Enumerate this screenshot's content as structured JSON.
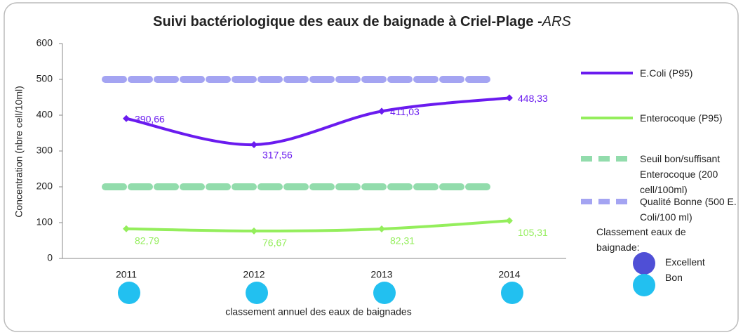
{
  "chart_data": {
    "type": "line",
    "title": "Suivi  bactériologique des eaux de baignade à Criel-Plage -",
    "title_italic": "ARS",
    "ylabel": "Concentration (nbre cell/10ml)",
    "xlabel": "classement  annuel des eaux de baignades",
    "categories": [
      "2011",
      "2012",
      "2013",
      "2014"
    ],
    "ylim": [
      0,
      600
    ],
    "yticks": [
      0,
      100,
      200,
      300,
      400,
      500,
      600
    ],
    "series": [
      {
        "name": "E.Coli (P95)",
        "color": "#6a1bef",
        "style": "solid",
        "values": [
          390.66,
          317.56,
          411.03,
          448.33
        ],
        "value_labels": [
          "390,66",
          "317,56",
          "411,03",
          "448,33"
        ]
      },
      {
        "name": "Enterocoque (P95)",
        "color": "#94ee5c",
        "style": "solid",
        "values": [
          82.79,
          76.67,
          82.31,
          105.31
        ],
        "value_labels": [
          "82,79",
          "76,67",
          "82,31",
          "105,31"
        ]
      },
      {
        "name": "Seuil bon/suffisant Enterocoque (200 cell/100ml)",
        "color": "#92dcac",
        "style": "dashed",
        "values": [
          200,
          200,
          200,
          200
        ]
      },
      {
        "name": "Qualité Bonne (500 E. Coli/100 ml)",
        "color": "#a4a4f2",
        "style": "dashed",
        "values": [
          500,
          500,
          500,
          500
        ]
      }
    ],
    "classement": {
      "title": "Classement eaux de baignade:",
      "levels": [
        {
          "name": "Excellent",
          "color": "#4f4fd6"
        },
        {
          "name": "Bon",
          "color": "#22c0f0"
        }
      ],
      "annual": [
        "Bon",
        "Bon",
        "Bon",
        "Bon"
      ]
    }
  }
}
